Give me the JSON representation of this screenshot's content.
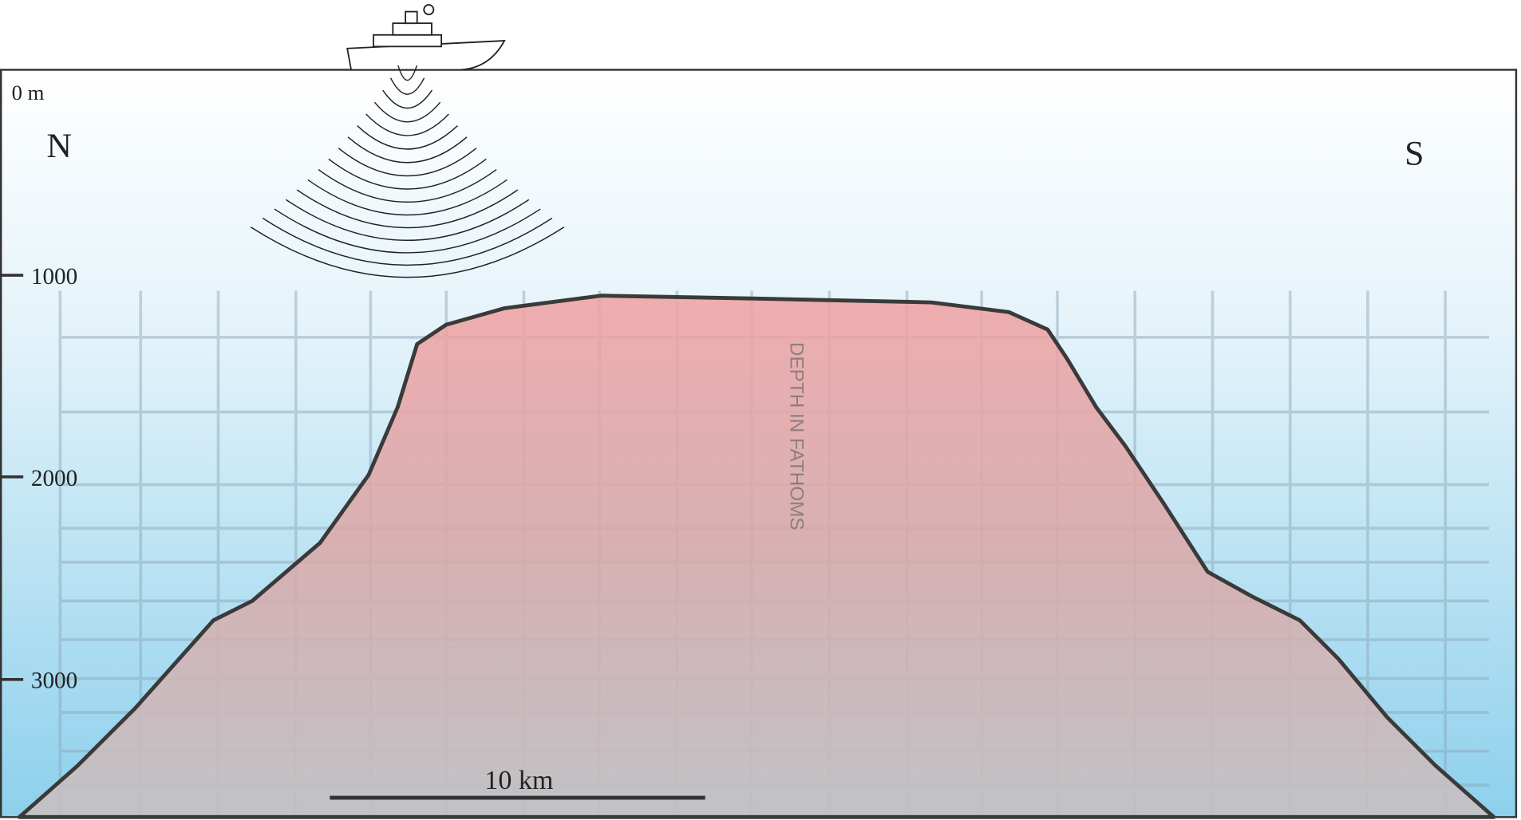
{
  "labels": {
    "surface": "0 m",
    "north": "N",
    "south": "S",
    "depth_ticks": [
      "1000",
      "2000",
      "3000"
    ],
    "scale_bar": "10 km",
    "record_caption": "DEPTH IN FATHOMS"
  }
}
